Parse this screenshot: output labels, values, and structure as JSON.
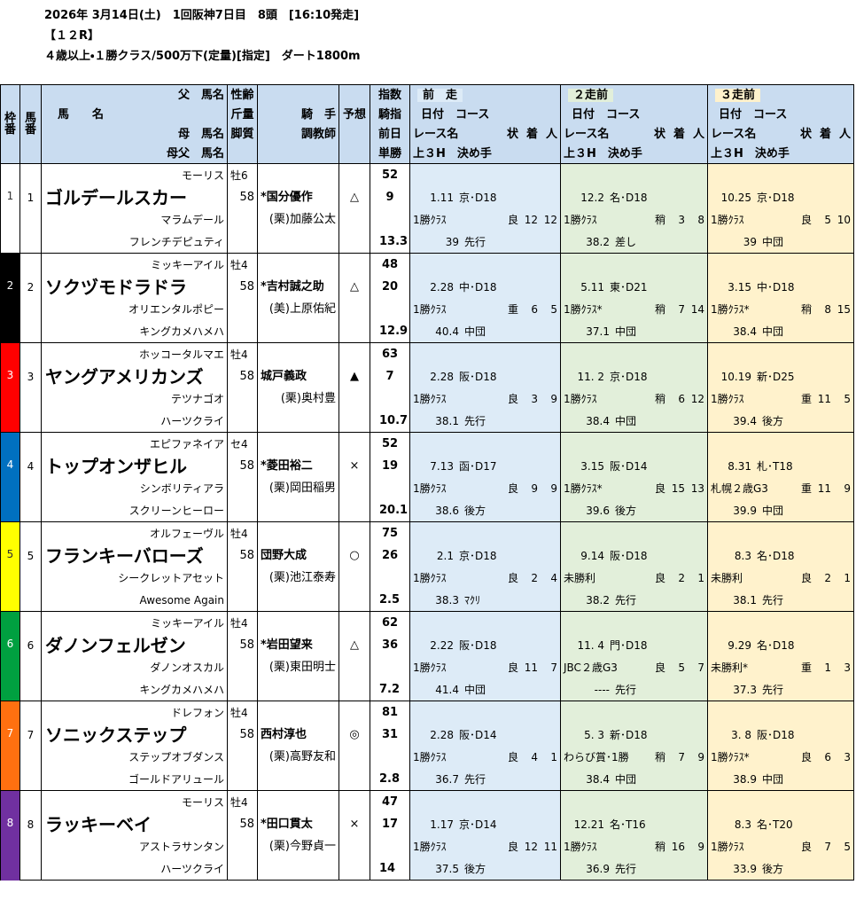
{
  "header": {
    "date_line": "2026年 3月14日(土)　1回阪神7日目　8頭　[16:10発走]",
    "race_no": "【１２R】",
    "conditions": "４歳以上・１勝クラス/500万下(定量)[指定]　ダート1800m"
  },
  "table": {
    "columns": {
      "waku": [
        "枠",
        "番"
      ],
      "umaban": [
        "馬",
        "番"
      ],
      "name": [
        "父　馬名",
        "馬　　名",
        "母　馬名",
        "母父　馬名"
      ],
      "sex": [
        "性齢",
        "斤量",
        "脚質"
      ],
      "jockey": [
        "騎　手",
        "調教師"
      ],
      "mark": "予想",
      "index": [
        "指数",
        "騎指",
        "前日",
        "単勝"
      ],
      "races": [
        {
          "title": "前　走",
          "color": "#ddebf7",
          "date_course": "日付　コース",
          "race_name": "レース名",
          "cond": "状",
          "finish": "着",
          "pop": "人",
          "last": "上３H　決め手"
        },
        {
          "title": "２走前",
          "color": "#e2efda",
          "date_course": "日付　コース",
          "race_name": "レース名",
          "cond": "状",
          "finish": "着",
          "pop": "人",
          "last": "上３H　決め手"
        },
        {
          "title": "３走前",
          "color": "#fff2cc",
          "date_course": "日付　コース",
          "race_name": "レース名",
          "cond": "状",
          "finish": "着",
          "pop": "人",
          "last": "上３H　決め手"
        }
      ]
    },
    "horses": [
      {
        "waku": "1",
        "waku_color": "#ffffff",
        "number": "1",
        "name": "ゴルデールスカー",
        "sire": "モーリス",
        "dam": "マラムデール",
        "damsire": "フレンチデピュティ",
        "sex_age": "牡6",
        "weight": "58",
        "jockey": "*国分優作",
        "trainer": "(栗)加藤公太",
        "mark": "△",
        "index": "52",
        "jockey_index": "9",
        "odds": "13.3",
        "races": [
          {
            "date": "1.11",
            "course": "京･D18",
            "race_name": "1勝ｸﾗｽ",
            "cond": "良",
            "finish": "12",
            "pop": "12",
            "last": "39",
            "style": "先行"
          },
          {
            "date": "12.2",
            "course": "名･D18",
            "race_name": "1勝ｸﾗｽ",
            "cond": "稍",
            "finish": "3",
            "pop": "8",
            "last": "38.2",
            "style": "差し"
          },
          {
            "date": "10.25",
            "course": "京･D18",
            "race_name": "1勝ｸﾗｽ",
            "cond": "良",
            "finish": "5",
            "pop": "10",
            "last": "39",
            "style": "中団"
          }
        ]
      },
      {
        "waku": "2",
        "waku_color": "#000000",
        "number": "2",
        "name": "ソクヅモドラドラ",
        "sire": "ミッキーアイル",
        "dam": "オリエンタルポピー",
        "damsire": "キングカメハメハ",
        "sex_age": "牡4",
        "weight": "58",
        "jockey": "*吉村誠之助",
        "trainer": "(美)上原佑紀",
        "mark": "△",
        "index": "48",
        "jockey_index": "20",
        "odds": "12.9",
        "races": [
          {
            "date": "2.28",
            "course": "中･D18",
            "race_name": "1勝ｸﾗｽ",
            "cond": "重",
            "finish": "6",
            "pop": "5",
            "last": "40.4",
            "style": "中団"
          },
          {
            "date": "5.11",
            "course": "東･D21",
            "race_name": "1勝ｸﾗｽ*",
            "cond": "稍",
            "finish": "7",
            "pop": "14",
            "last": "37.1",
            "style": "中団"
          },
          {
            "date": "3.15",
            "course": "中･D18",
            "race_name": "1勝ｸﾗｽ*",
            "cond": "稍",
            "finish": "8",
            "pop": "15",
            "last": "38.4",
            "style": "中団"
          }
        ]
      },
      {
        "waku": "3",
        "waku_color": "#ff0000",
        "number": "3",
        "name": "ヤングアメリカンズ",
        "sire": "ホッコータルマエ",
        "dam": "テツナゴオ",
        "damsire": "ハーツクライ",
        "sex_age": "牡4",
        "weight": "58",
        "jockey": "城戸義政",
        "trainer": "(栗)奥村豊",
        "mark": "▲",
        "index": "63",
        "jockey_index": "7",
        "odds": "10.7",
        "races": [
          {
            "date": "2.28",
            "course": "阪･D18",
            "race_name": "1勝ｸﾗｽ",
            "cond": "良",
            "finish": "3",
            "pop": "9",
            "last": "38.1",
            "style": "先行"
          },
          {
            "date": "11. 2",
            "course": "京･D18",
            "race_name": "1勝ｸﾗｽ",
            "cond": "稍",
            "finish": "6",
            "pop": "12",
            "last": "38.4",
            "style": "中団"
          },
          {
            "date": "10.19",
            "course": "新･D25",
            "race_name": "1勝ｸﾗｽ",
            "cond": "重",
            "finish": "11",
            "pop": "5",
            "last": "39.4",
            "style": "後方"
          }
        ]
      },
      {
        "waku": "4",
        "waku_color": "#0070c0",
        "number": "4",
        "name": "トップオンザヒル",
        "sire": "エピファネイア",
        "dam": "シンボリティアラ",
        "damsire": "スクリーンヒーロー",
        "sex_age": "セ4",
        "weight": "58",
        "jockey": "*菱田裕二",
        "trainer": "(栗)岡田稲男",
        "mark": "×",
        "index": "52",
        "jockey_index": "19",
        "odds": "20.1",
        "races": [
          {
            "date": "7.13",
            "course": "函･D17",
            "race_name": "1勝ｸﾗｽ",
            "cond": "良",
            "finish": "9",
            "pop": "9",
            "last": "38.6",
            "style": "後方"
          },
          {
            "date": "3.15",
            "course": "阪･D14",
            "race_name": "1勝ｸﾗｽ*",
            "cond": "良",
            "finish": "15",
            "pop": "13",
            "last": "39.6",
            "style": "後方"
          },
          {
            "date": "8.31",
            "course": "札･T18",
            "race_name": "札幌２歳G3",
            "cond": "重",
            "finish": "11",
            "pop": "9",
            "last": "39.9",
            "style": "中団"
          }
        ]
      },
      {
        "waku": "5",
        "waku_color": "#ffff00",
        "number": "5",
        "name": "フランキーバローズ",
        "sire": "オルフェーヴル",
        "dam": "シークレットアセット",
        "damsire": "Awesome Again",
        "sex_age": "牡4",
        "weight": "58",
        "jockey": "団野大成",
        "trainer": "(栗)池江泰寿",
        "mark": "○",
        "index": "75",
        "jockey_index": "26",
        "odds": "2.5",
        "races": [
          {
            "date": "2.1",
            "course": "京･D18",
            "race_name": "1勝ｸﾗｽ",
            "cond": "良",
            "finish": "2",
            "pop": "4",
            "last": "38.3",
            "style": "ﾏｸﾘ"
          },
          {
            "date": "9.14",
            "course": "阪･D18",
            "race_name": "未勝利",
            "cond": "良",
            "finish": "2",
            "pop": "1",
            "last": "38.2",
            "style": "先行"
          },
          {
            "date": "8.3",
            "course": "名･D18",
            "race_name": "未勝利",
            "cond": "良",
            "finish": "2",
            "pop": "1",
            "last": "38.1",
            "style": "先行"
          }
        ]
      },
      {
        "waku": "6",
        "waku_color": "#00a040",
        "number": "6",
        "name": "ダノンフェルゼン",
        "sire": "ミッキーアイル",
        "dam": "ダノンオスカル",
        "damsire": "キングカメハメハ",
        "sex_age": "牡4",
        "weight": "58",
        "jockey": "*岩田望来",
        "trainer": "(栗)東田明士",
        "mark": "△",
        "index": "62",
        "jockey_index": "36",
        "odds": "7.2",
        "races": [
          {
            "date": "2.22",
            "course": "阪･D18",
            "race_name": "1勝ｸﾗｽ",
            "cond": "良",
            "finish": "11",
            "pop": "7",
            "last": "41.4",
            "style": "中団"
          },
          {
            "date": "11. 4",
            "course": "門･D18",
            "race_name": "JBC２歳G3",
            "cond": "良",
            "finish": "5",
            "pop": "7",
            "last": "----",
            "style": "先行"
          },
          {
            "date": "9.29",
            "course": "名･D18",
            "race_name": "未勝利*",
            "cond": "重",
            "finish": "1",
            "pop": "3",
            "last": "37.3",
            "style": "先行"
          }
        ]
      },
      {
        "waku": "7",
        "waku_color": "#ff7010",
        "number": "7",
        "name": "ソニックステップ",
        "sire": "ドレフォン",
        "dam": "ステップオブダンス",
        "damsire": "ゴールドアリュール",
        "sex_age": "牡4",
        "weight": "58",
        "jockey": "西村淳也",
        "trainer": "(栗)高野友和",
        "mark": "◎",
        "index": "81",
        "jockey_index": "31",
        "odds": "2.8",
        "races": [
          {
            "date": "2.28",
            "course": "阪･D14",
            "race_name": "1勝ｸﾗｽ",
            "cond": "良",
            "finish": "4",
            "pop": "1",
            "last": "36.7",
            "style": "先行"
          },
          {
            "date": "5. 3",
            "course": "新･D18",
            "race_name": "わらび賞･1勝",
            "cond": "稍",
            "finish": "7",
            "pop": "9",
            "last": "38.4",
            "style": "中団"
          },
          {
            "date": "3. 8",
            "course": "阪･D18",
            "race_name": "1勝ｸﾗｽ*",
            "cond": "良",
            "finish": "6",
            "pop": "3",
            "last": "38.9",
            "style": "中団"
          }
        ]
      },
      {
        "waku": "8",
        "waku_color": "#7030a0",
        "number": "8",
        "name": "ラッキーベイ",
        "sire": "モーリス",
        "dam": "アストラサンタン",
        "damsire": "ハーツクライ",
        "sex_age": "牡4",
        "weight": "58",
        "jockey": "*田口貫太",
        "trainer": "(栗)今野貞一",
        "mark": "×",
        "index": "47",
        "jockey_index": "17",
        "odds": "14",
        "races": [
          {
            "date": "1.17",
            "course": "京･D14",
            "race_name": "1勝ｸﾗｽ",
            "cond": "良",
            "finish": "12",
            "pop": "11",
            "last": "37.5",
            "style": "後方"
          },
          {
            "date": "12.21",
            "course": "名･T16",
            "race_name": "1勝ｸﾗｽ",
            "cond": "稍",
            "finish": "16",
            "pop": "9",
            "last": "36.9",
            "style": "先行"
          },
          {
            "date": "8.3",
            "course": "名･T20",
            "race_name": "1勝ｸﾗｽ",
            "cond": "良",
            "finish": "7",
            "pop": "5",
            "last": "33.9",
            "style": "後方"
          }
        ]
      }
    ]
  }
}
